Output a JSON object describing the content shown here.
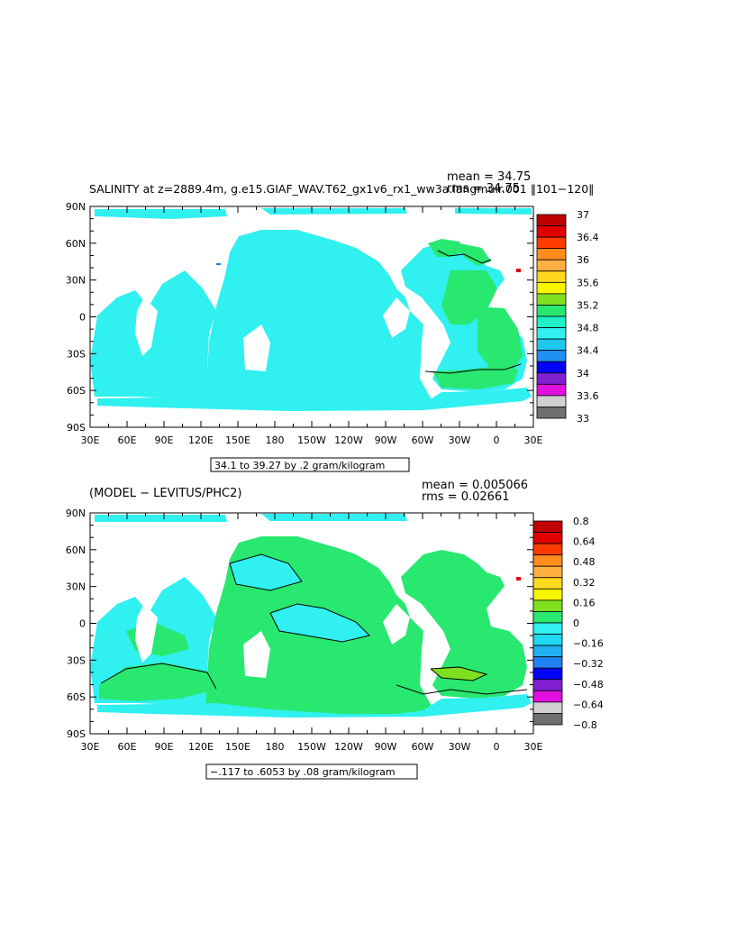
{
  "chart_data": [
    {
      "type": "heatmap",
      "title": "SALINITY at z=2889.4m, g.e15.GIAF_WAV.T62_gx1v6_rx1_ww3a.langmuir.001  ‖101−120‖",
      "stats": {
        "mean": "mean = 34.75",
        "rms": "rms = 34.75"
      },
      "range_label": "34.1 to 39.27 by .2 gram/kilogram",
      "xlim": [
        30,
        390
      ],
      "ylim": [
        -90,
        90
      ],
      "x_ticks": [
        "30E",
        "60E",
        "90E",
        "120E",
        "150E",
        "180",
        "150W",
        "120W",
        "90W",
        "60W",
        "30W",
        "0",
        "30E"
      ],
      "y_ticks": [
        "90N",
        "60N",
        "30N",
        "0",
        "30S",
        "60S",
        "90S"
      ],
      "colorbar_labels": [
        "37",
        "36.4",
        "36",
        "35.6",
        "35.2",
        "34.8",
        "34.4",
        "34",
        "33.6",
        "33"
      ],
      "colors": [
        "#c00000",
        "#e00000",
        "#ff3c00",
        "#ff8c1c",
        "#ffb040",
        "#ffd820",
        "#f6f600",
        "#80e020",
        "#28e870",
        "#20f0c8",
        "#30f0f0",
        "#20c8f0",
        "#2090f0",
        "#0000ff",
        "#8020d0",
        "#e010e0",
        "#d0d0d0",
        "#707070"
      ],
      "dominant_color": "#30f0f0"
    },
    {
      "type": "heatmap",
      "title": "(MODEL − LEVITUS/PHC2)",
      "stats": {
        "mean": "mean = 0.005066",
        "rms": "rms = 0.02661"
      },
      "range_label": "−.117 to .6053 by .08 gram/kilogram",
      "xlim": [
        30,
        390
      ],
      "ylim": [
        -90,
        90
      ],
      "x_ticks": [
        "30E",
        "60E",
        "90E",
        "120E",
        "150E",
        "180",
        "150W",
        "120W",
        "90W",
        "60W",
        "30W",
        "0",
        "30E"
      ],
      "y_ticks": [
        "90N",
        "60N",
        "30N",
        "0",
        "30S",
        "60S",
        "90S"
      ],
      "colorbar_labels": [
        "0.8",
        "0.64",
        "0.48",
        "0.32",
        "0.16",
        "0",
        "−0.16",
        "−0.32",
        "−0.48",
        "−0.64",
        "−0.8"
      ],
      "colors": [
        "#c00000",
        "#e00000",
        "#ff3c00",
        "#ff8c1c",
        "#ffb040",
        "#ffd820",
        "#f6f600",
        "#80e020",
        "#28e870",
        "#30f0f0",
        "#20d8f0",
        "#20b0f0",
        "#2080f0",
        "#0000ff",
        "#8020d0",
        "#e010e0",
        "#d0d0d0",
        "#707070"
      ],
      "dominant_color": "#28e870"
    }
  ]
}
